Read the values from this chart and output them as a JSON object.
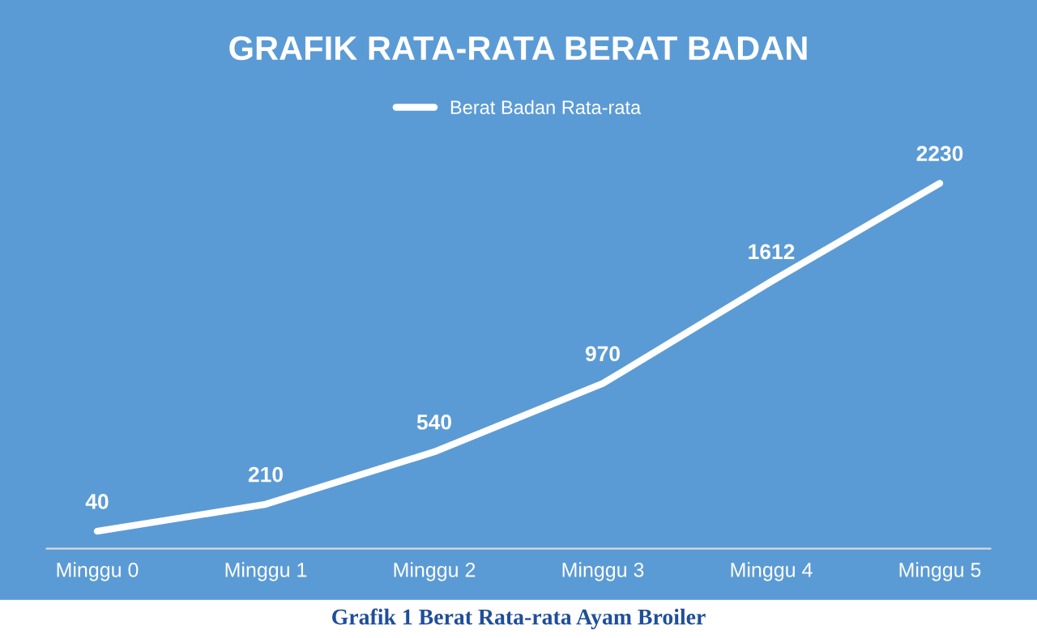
{
  "chart_data": {
    "type": "line",
    "title": "GRAFIK RATA-RATA BERAT BADAN",
    "categories": [
      "Minggu 0",
      "Minggu 1",
      "Minggu 2",
      "Minggu 3",
      "Minggu 4",
      "Minggu 5"
    ],
    "series": [
      {
        "name": "Berat Badan Rata-rata",
        "color": "#ffffff",
        "values": [
          40,
          210,
          540,
          970,
          1612,
          2230
        ]
      }
    ],
    "data_labels": true,
    "legend": "top",
    "grid": false,
    "marker": "none",
    "line_style": "solid",
    "tick_labels": "x",
    "annotations": [
      "Grafik 1 Berat Rata-rata Ayam Broiler"
    ]
  }
}
